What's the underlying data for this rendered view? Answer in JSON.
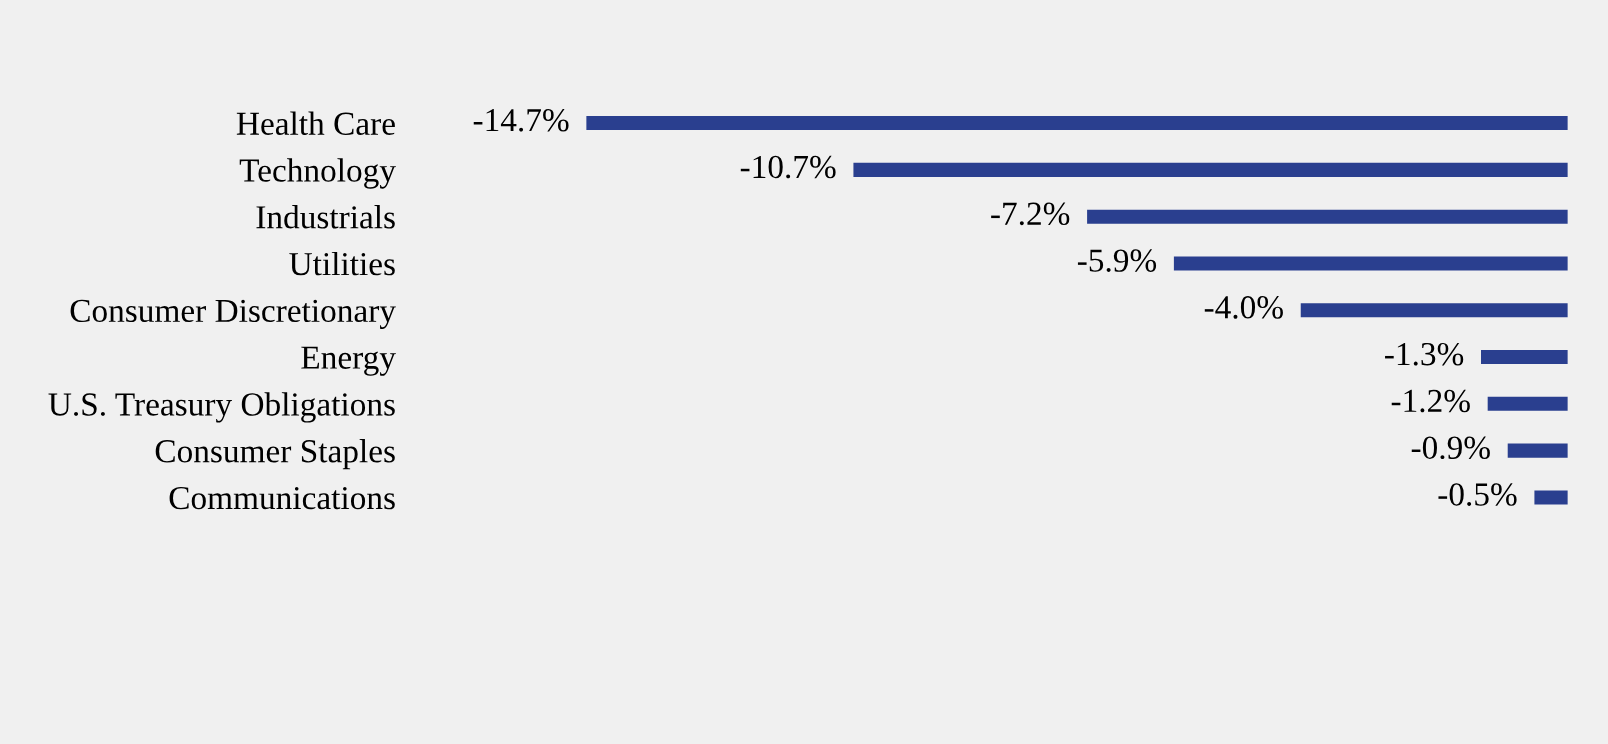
{
  "chart_data": {
    "type": "bar",
    "orientation": "horizontal",
    "categories": [
      "Health Care",
      "Technology",
      "Industrials",
      "Utilities",
      "Consumer Discretionary",
      "Energy",
      "U.S. Treasury Obligations",
      "Consumer Staples",
      "Communications"
    ],
    "values": [
      -14.7,
      -10.7,
      -7.2,
      -5.9,
      -4.0,
      -1.3,
      -1.2,
      -0.9,
      -0.5
    ],
    "value_labels": [
      "-14.7%",
      "-10.7%",
      "-7.2%",
      "-5.9%",
      "-4.0%",
      "-1.3%",
      "-1.2%",
      "-0.9%",
      "-0.5%"
    ],
    "color": "#2a3f8f",
    "grid": false,
    "legend": false
  }
}
